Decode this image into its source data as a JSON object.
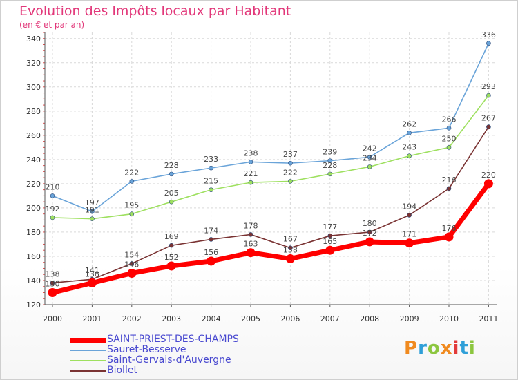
{
  "title": "Evolution des Impôts locaux par Habitant",
  "subtitle": "(en € et par an)",
  "logo": {
    "text": "Proxiti",
    "colors": [
      "#f08a1f",
      "#2f9fd8",
      "#8cc63f",
      "#f08a1f",
      "#e23a3a",
      "#2f9fd8",
      "#8cc63f"
    ]
  },
  "chart_data": {
    "type": "line",
    "x": [
      "2000",
      "2001",
      "2002",
      "2003",
      "2004",
      "2005",
      "2006",
      "2007",
      "2008",
      "2009",
      "2010",
      "2011"
    ],
    "ylim": [
      120,
      345
    ],
    "yticks": [
      120,
      140,
      160,
      180,
      200,
      220,
      240,
      260,
      280,
      300,
      320,
      340
    ],
    "grid": true,
    "legend_position": "bottom-left",
    "series": [
      {
        "name": "SAINT-PRIEST-DES-CHAMPS",
        "color": "#ff0000",
        "values": [
          130,
          138,
          146,
          152,
          156,
          163,
          158,
          165,
          172,
          171,
          176,
          220
        ],
        "labels": [
          "130",
          "138",
          "146",
          "152",
          "156",
          "163",
          "158",
          "165",
          "172",
          "171",
          "176",
          "220"
        ]
      },
      {
        "name": "Sauret-Besserve",
        "color": "#6aa4d9",
        "values": [
          210,
          197,
          222,
          228,
          233,
          238,
          237,
          239,
          242,
          262,
          266,
          336
        ],
        "labels": [
          "210",
          "197",
          "222",
          "228",
          "233",
          "238",
          "237",
          "239",
          "242",
          "262",
          "266",
          "336"
        ]
      },
      {
        "name": "Saint-Gervais-d'Auvergne",
        "color": "#9ee05f",
        "values": [
          192,
          191,
          195,
          205,
          215,
          221,
          222,
          228,
          234,
          243,
          250,
          293
        ],
        "labels": [
          "192",
          "191",
          "195",
          "205",
          "215",
          "221",
          "222",
          "228",
          "234",
          "243",
          "250",
          "293"
        ]
      },
      {
        "name": "Biollet",
        "color": "#7a3333",
        "values": [
          138,
          141,
          154,
          169,
          174,
          178,
          167,
          177,
          180,
          194,
          216,
          267
        ],
        "labels": [
          "138",
          "141",
          "154",
          "169",
          "174",
          "178",
          "167",
          "177",
          "180",
          "194",
          "216",
          "267"
        ]
      }
    ]
  }
}
